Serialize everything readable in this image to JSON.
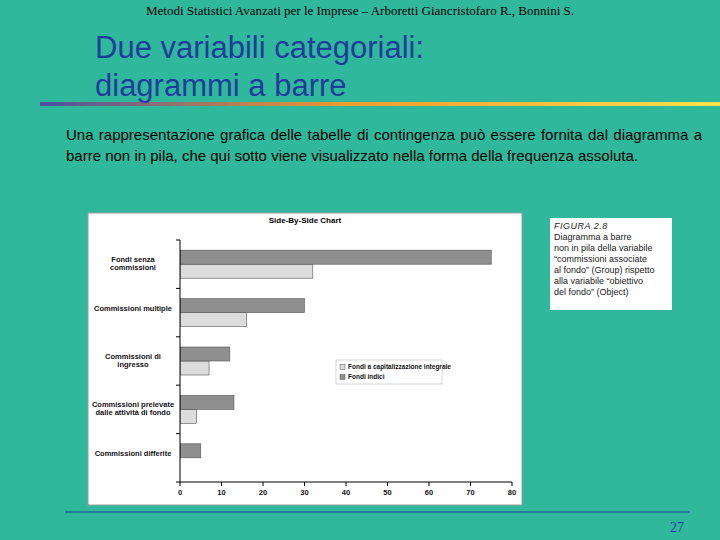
{
  "slide": {
    "header": "Metodi Statistici Avanzati per le Imprese – Arboretti Giancristofaro R., Bonnini S.",
    "title": [
      "Due variabili categoriali:",
      "diagrammi a barre"
    ],
    "text": "Una rappresentazione grafica delle tabelle di contingenza può essere fornita dal diagramma a barre non in pila, che qui sotto viene visualizzato nella forma della frequenza assoluta.",
    "caption": [
      "FIGURA 2.8",
      "Diagramma a barre",
      "non in pila della variabile",
      "“commissioni associate",
      "al fondo” (Group) rispetto",
      "alla variabile “obiettivo",
      "del fondo” (Object)"
    ],
    "page_number": "27"
  },
  "chart_data": {
    "type": "bar",
    "orientation": "horizontal",
    "title": "Side-By-Side Chart",
    "categories": [
      "Fondi senza commissioni",
      "Commissioni multiple",
      "Commissioni di ingresso",
      "Commissioni prelevate dalle attività di fondo",
      "Commissioni differite"
    ],
    "series": [
      {
        "name": "Fondi a capitalizzazione integrale",
        "color": "#dcdcdc",
        "values": [
          32,
          16,
          7,
          4,
          0
        ]
      },
      {
        "name": "Fondi indici",
        "color": "#8f8f8f",
        "values": [
          75,
          30,
          12,
          13,
          5
        ]
      }
    ],
    "xlim": [
      0,
      80
    ],
    "xticks": [
      0,
      10,
      20,
      30,
      40,
      50,
      60,
      70,
      80
    ],
    "grid": false,
    "legend": "lower right"
  }
}
